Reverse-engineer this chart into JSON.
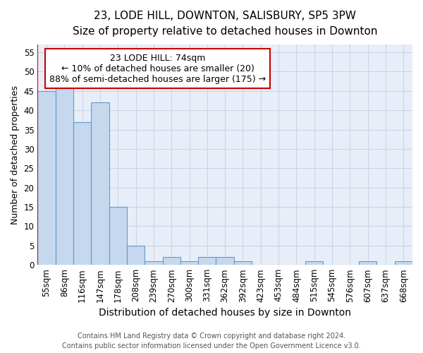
{
  "title1": "23, LODE HILL, DOWNTON, SALISBURY, SP5 3PW",
  "title2": "Size of property relative to detached houses in Downton",
  "xlabel": "Distribution of detached houses by size in Downton",
  "ylabel": "Number of detached properties",
  "bin_labels": [
    "55sqm",
    "86sqm",
    "116sqm",
    "147sqm",
    "178sqm",
    "208sqm",
    "239sqm",
    "270sqm",
    "300sqm",
    "331sqm",
    "362sqm",
    "392sqm",
    "423sqm",
    "453sqm",
    "484sqm",
    "515sqm",
    "545sqm",
    "576sqm",
    "607sqm",
    "637sqm",
    "668sqm"
  ],
  "bar_values": [
    45,
    46,
    37,
    42,
    15,
    5,
    1,
    2,
    1,
    2,
    2,
    1,
    0,
    0,
    0,
    1,
    0,
    0,
    1,
    0,
    1
  ],
  "bar_color": "#c5d8ee",
  "bar_edge_color": "#6699cc",
  "vline_color": "#cc0000",
  "vline_pos": -0.5,
  "ylim": [
    0,
    57
  ],
  "yticks": [
    0,
    5,
    10,
    15,
    20,
    25,
    30,
    35,
    40,
    45,
    50,
    55
  ],
  "annotation_text": "23 LODE HILL: 74sqm\n← 10% of detached houses are smaller (20)\n88% of semi-detached houses are larger (175) →",
  "annotation_box_facecolor": "#ffffff",
  "annotation_box_edgecolor": "#cc0000",
  "footer1": "Contains HM Land Registry data © Crown copyright and database right 2024.",
  "footer2": "Contains public sector information licensed under the Open Government Licence v3.0.",
  "grid_color": "#c8d4e8",
  "background_color": "#e8eef8",
  "figure_bg": "#ffffff",
  "title1_fontsize": 11,
  "title2_fontsize": 10,
  "ylabel_fontsize": 9,
  "xlabel_fontsize": 10,
  "tick_fontsize": 8.5,
  "annotation_fontsize": 9,
  "footer_fontsize": 7
}
